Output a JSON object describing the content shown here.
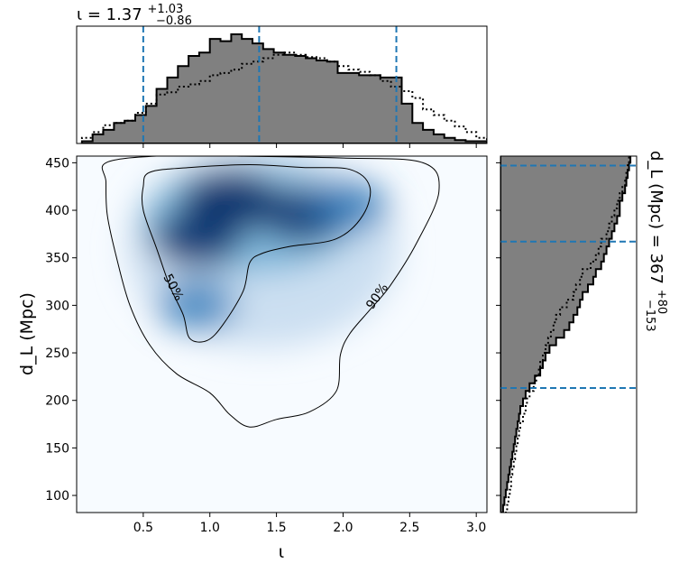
{
  "chart_data": {
    "type": "heatmap",
    "main": {
      "xlabel": "ι",
      "ylabel": "d_L (Mpc)",
      "xlim": [
        0.0,
        3.08
      ],
      "ylim": [
        82,
        457
      ],
      "xticks": [
        "0.5",
        "1.0",
        "1.5",
        "2.0",
        "2.5",
        "3.0"
      ],
      "yticks": [
        "100",
        "150",
        "200",
        "250",
        "300",
        "350",
        "400",
        "450"
      ],
      "colormap": "Blues",
      "density_peaks": [
        {
          "x": 1.15,
          "y": 410,
          "w": 1.0
        },
        {
          "x": 0.9,
          "y": 370,
          "w": 0.8
        },
        {
          "x": 1.7,
          "y": 395,
          "w": 0.75
        },
        {
          "x": 2.05,
          "y": 405,
          "w": 0.55
        },
        {
          "x": 0.9,
          "y": 300,
          "w": 0.55
        }
      ],
      "contours": [
        {
          "level": "50%",
          "label": "50%",
          "points": [
            [
              0.55,
              440
            ],
            [
              0.85,
              445
            ],
            [
              1.3,
              448
            ],
            [
              1.7,
              445
            ],
            [
              2.05,
              443
            ],
            [
              2.2,
              425
            ],
            [
              2.15,
              395
            ],
            [
              1.95,
              370
            ],
            [
              1.6,
              362
            ],
            [
              1.4,
              355
            ],
            [
              1.3,
              345
            ],
            [
              1.25,
              315
            ],
            [
              1.1,
              280
            ],
            [
              0.98,
              263
            ],
            [
              0.85,
              265
            ],
            [
              0.8,
              290
            ],
            [
              0.7,
              320
            ],
            [
              0.6,
              360
            ],
            [
              0.5,
              400
            ],
            [
              0.5,
              425
            ]
          ]
        },
        {
          "level": "90%",
          "label": "90%",
          "points": [
            [
              0.22,
              450
            ],
            [
              0.6,
              457
            ],
            [
              1.2,
              457
            ],
            [
              2.0,
              455
            ],
            [
              2.6,
              450
            ],
            [
              2.72,
              420
            ],
            [
              2.55,
              365
            ],
            [
              2.35,
              320
            ],
            [
              2.2,
              295
            ],
            [
              2.05,
              270
            ],
            [
              1.98,
              248
            ],
            [
              1.95,
              210
            ],
            [
              1.75,
              188
            ],
            [
              1.5,
              180
            ],
            [
              1.3,
              172
            ],
            [
              1.15,
              185
            ],
            [
              1.0,
              208
            ],
            [
              0.75,
              228
            ],
            [
              0.55,
              258
            ],
            [
              0.4,
              300
            ],
            [
              0.3,
              350
            ],
            [
              0.23,
              395
            ],
            [
              0.22,
              430
            ]
          ]
        }
      ]
    },
    "top_marginal": {
      "title": "ι = 1.37",
      "title_sup": "+1.03",
      "title_sub": "−0.86",
      "lines": [
        0.5,
        1.37,
        2.4
      ],
      "bin_edges": [
        0.04,
        0.12,
        0.2,
        0.28,
        0.36,
        0.44,
        0.52,
        0.6,
        0.68,
        0.76,
        0.84,
        0.92,
        1.0,
        1.08,
        1.16,
        1.24,
        1.32,
        1.4,
        1.48,
        1.56,
        1.64,
        1.72,
        1.8,
        1.88,
        1.96,
        2.04,
        2.12,
        2.2,
        2.28,
        2.36,
        2.44,
        2.52,
        2.6,
        2.68,
        2.76,
        2.84,
        2.92,
        3.0,
        3.08
      ],
      "solid_hist": [
        0.02,
        0.08,
        0.12,
        0.18,
        0.2,
        0.25,
        0.33,
        0.48,
        0.58,
        0.68,
        0.77,
        0.8,
        0.92,
        0.9,
        0.96,
        0.92,
        0.88,
        0.83,
        0.8,
        0.78,
        0.77,
        0.75,
        0.73,
        0.72,
        0.62,
        0.62,
        0.6,
        0.6,
        0.58,
        0.58,
        0.35,
        0.18,
        0.12,
        0.08,
        0.05,
        0.03,
        0.02,
        0.02
      ],
      "dotted_hist": [
        0.05,
        0.1,
        0.16,
        0.18,
        0.2,
        0.27,
        0.35,
        0.43,
        0.45,
        0.5,
        0.52,
        0.55,
        0.6,
        0.62,
        0.65,
        0.7,
        0.72,
        0.75,
        0.78,
        0.8,
        0.78,
        0.76,
        0.75,
        0.72,
        0.68,
        0.65,
        0.63,
        0.6,
        0.55,
        0.5,
        0.46,
        0.4,
        0.3,
        0.25,
        0.2,
        0.15,
        0.1,
        0.05
      ],
      "hist_ylim": [
        0,
        1.0
      ]
    },
    "right_marginal": {
      "title": "d_L (Mpc) = 367",
      "title_sup": "+80",
      "title_sub": "−153",
      "lines": [
        213,
        367,
        447
      ],
      "bin_edges": [
        82,
        90,
        98,
        106,
        114,
        122,
        130,
        138,
        146,
        154,
        162,
        170,
        178,
        186,
        194,
        202,
        210,
        218,
        226,
        234,
        242,
        250,
        258,
        266,
        274,
        282,
        290,
        298,
        306,
        314,
        322,
        330,
        338,
        346,
        354,
        362,
        370,
        378,
        386,
        394,
        402,
        410,
        418,
        426,
        434,
        442,
        450,
        458
      ],
      "solid_hist": [
        0.02,
        0.03,
        0.04,
        0.05,
        0.06,
        0.07,
        0.08,
        0.09,
        0.1,
        0.11,
        0.12,
        0.13,
        0.14,
        0.15,
        0.17,
        0.19,
        0.22,
        0.26,
        0.3,
        0.32,
        0.34,
        0.37,
        0.42,
        0.48,
        0.52,
        0.55,
        0.58,
        0.6,
        0.62,
        0.66,
        0.7,
        0.72,
        0.76,
        0.78,
        0.8,
        0.82,
        0.84,
        0.86,
        0.88,
        0.9,
        0.9,
        0.92,
        0.94,
        0.95,
        0.96,
        0.97,
        0.98
      ],
      "dotted_hist": [
        0.05,
        0.06,
        0.07,
        0.08,
        0.08,
        0.09,
        0.1,
        0.11,
        0.12,
        0.13,
        0.14,
        0.15,
        0.17,
        0.19,
        0.2,
        0.22,
        0.25,
        0.27,
        0.29,
        0.3,
        0.32,
        0.34,
        0.36,
        0.38,
        0.4,
        0.42,
        0.45,
        0.5,
        0.55,
        0.57,
        0.6,
        0.62,
        0.68,
        0.72,
        0.74,
        0.76,
        0.8,
        0.82,
        0.84,
        0.86,
        0.88,
        0.9,
        0.92,
        0.94,
        0.95,
        0.96,
        0.97
      ],
      "hist_xlim": [
        0,
        1.0
      ]
    },
    "colors": {
      "solid_fill": "#808080",
      "edge": "#000000",
      "interval_line": "#1f77b4",
      "contour": "#000000"
    }
  }
}
